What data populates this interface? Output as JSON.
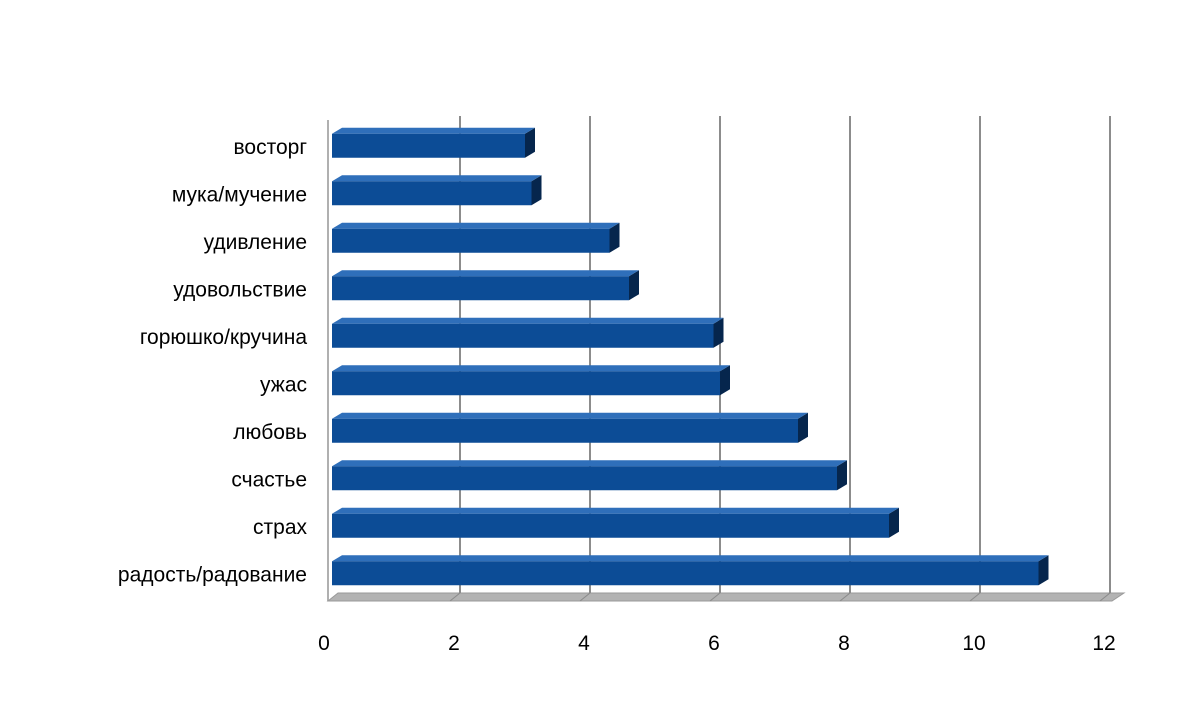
{
  "chart_data": {
    "type": "bar",
    "orientation": "horizontal",
    "title": "",
    "xlabel": "",
    "ylabel": "",
    "categories": [
      "восторг",
      "мука/мучение",
      "удивление",
      "удовольствие",
      "горюшко/кручина",
      "ужас",
      "любовь",
      "счастье",
      "страх",
      "радость/радование"
    ],
    "values": [
      3.0,
      3.1,
      4.3,
      4.6,
      5.9,
      6.0,
      7.2,
      7.8,
      8.6,
      10.9
    ],
    "xlim": [
      0,
      12
    ],
    "xticks": [
      "0",
      "2",
      "4",
      "6",
      "8",
      "10",
      "12"
    ],
    "grid": true,
    "style": "3d",
    "colors": {
      "bar_front": "#0c4c96",
      "bar_top": "#2f6fba",
      "bar_side": "#06264d",
      "grid": "#8c8c8c",
      "floor": "#b3b3b3"
    }
  }
}
